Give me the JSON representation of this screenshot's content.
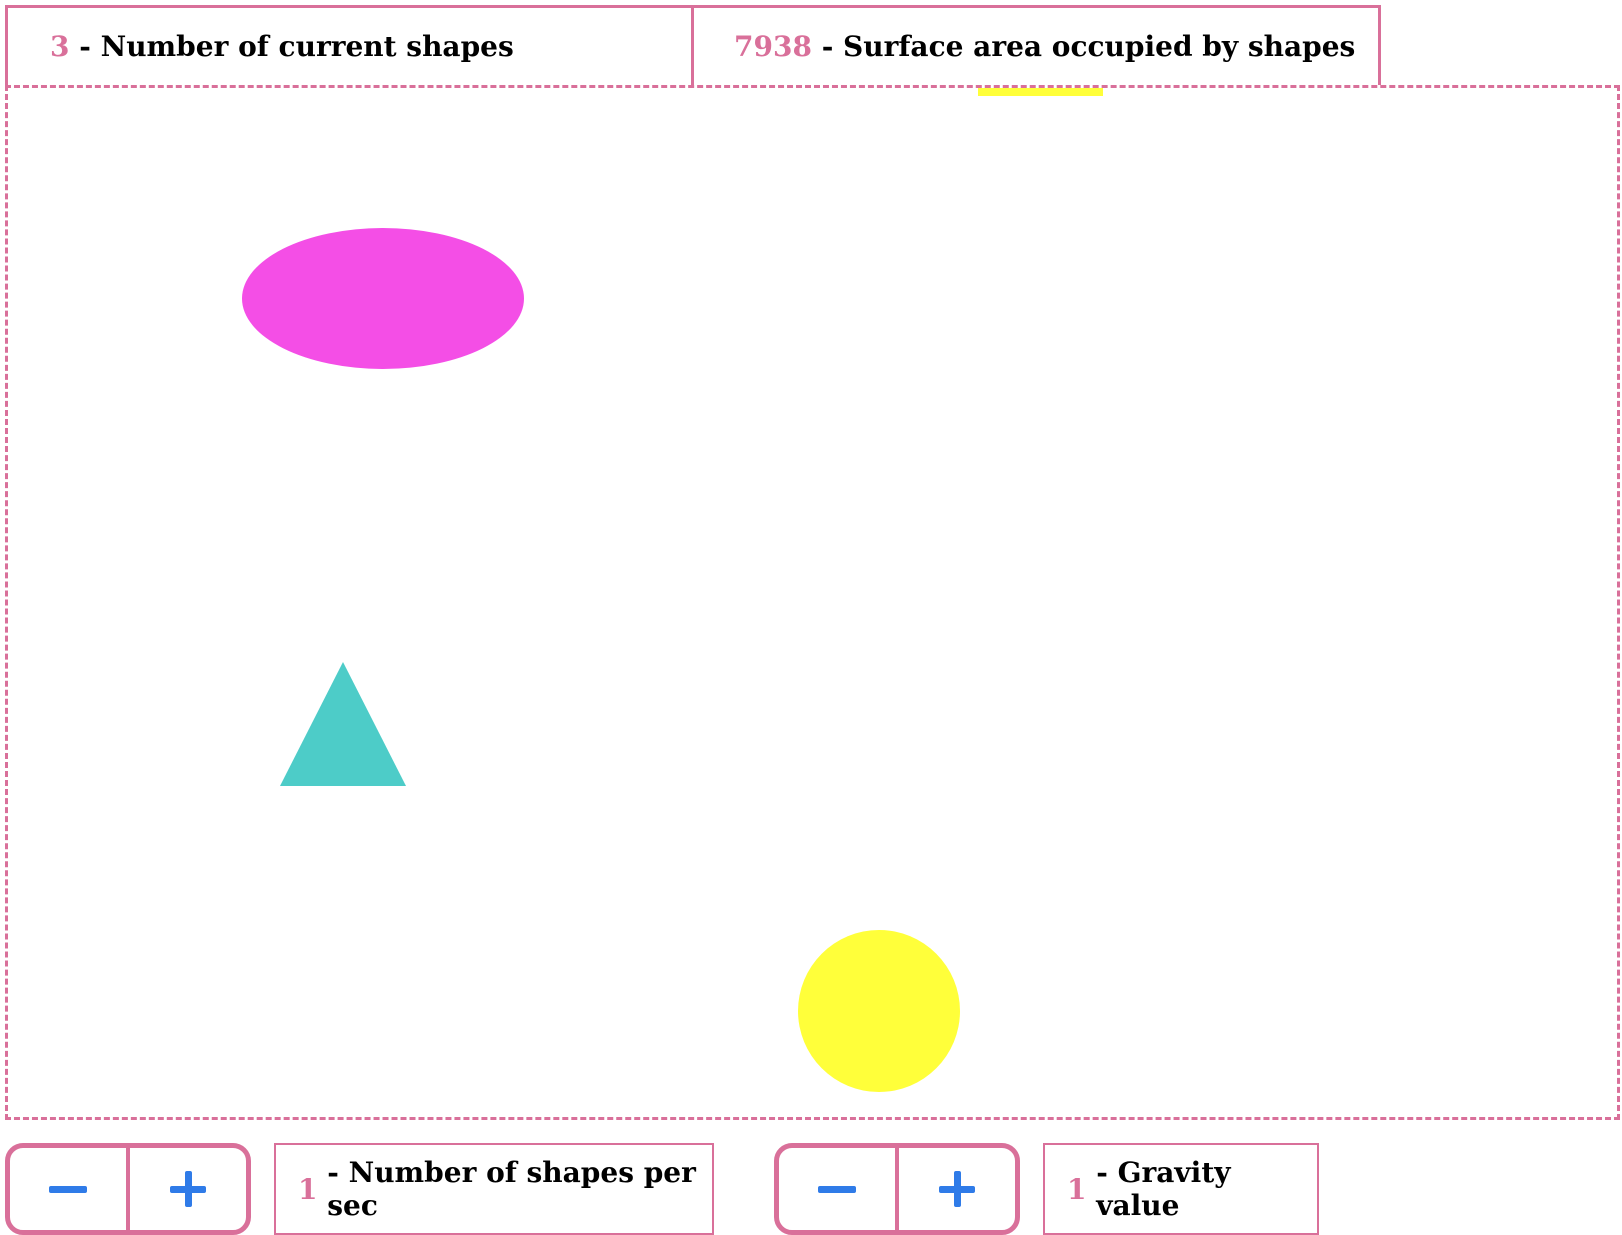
{
  "stats": {
    "shape_count": "3",
    "shape_count_label": "- Number of current shapes",
    "surface_area": "7938",
    "surface_area_label": "- Surface area occupied by shapes"
  },
  "canvas": {
    "shapes": [
      {
        "type": "ellipse",
        "color": "#f44ee6"
      },
      {
        "type": "triangle",
        "color": "#4dccc8"
      },
      {
        "type": "circle",
        "color": "#ffff3a"
      },
      {
        "type": "partial-shape",
        "color": "#ffff3a"
      }
    ]
  },
  "controls": {
    "shapes_per_sec": {
      "minus_label": "−",
      "plus_label": "+",
      "value": "1",
      "label": "- Number of shapes per sec"
    },
    "gravity": {
      "minus_label": "−",
      "plus_label": "+",
      "value": "1",
      "label": "- Gravity value"
    }
  },
  "colors": {
    "accent": "#d9709a",
    "button_icon": "#2f7be8"
  }
}
